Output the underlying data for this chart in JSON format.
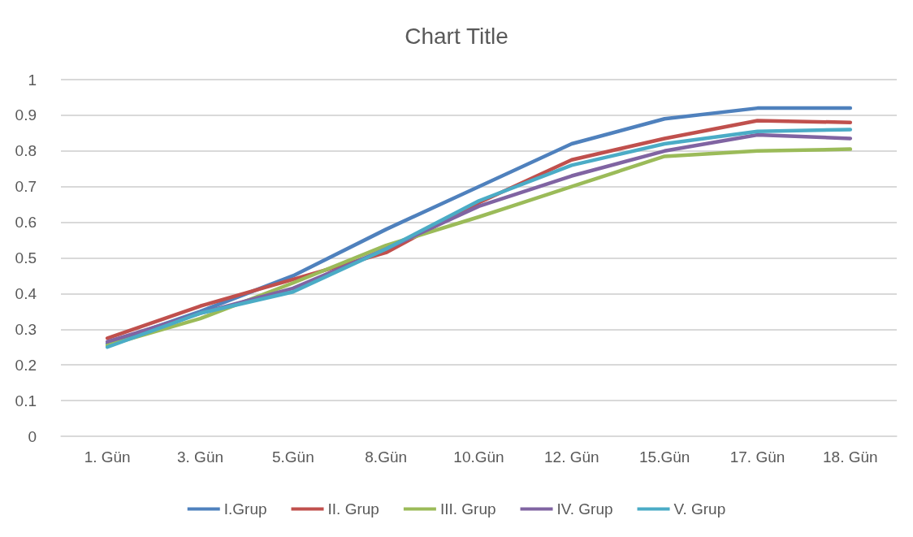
{
  "chart_data": {
    "type": "line",
    "title": "Chart Title",
    "categories": [
      "1. Gün",
      "3. Gün",
      "5.Gün",
      "8.Gün",
      "10.Gün",
      "12. Gün",
      "15.Gün",
      "17. Gün",
      "18. Gün"
    ],
    "series": [
      {
        "name": "I.Grup",
        "color": "#4f81bd",
        "values": [
          0.26,
          0.35,
          0.45,
          0.58,
          0.7,
          0.82,
          0.89,
          0.92,
          0.92
        ]
      },
      {
        "name": "II. Grup",
        "color": "#c0504d",
        "values": [
          0.275,
          0.365,
          0.44,
          0.515,
          0.655,
          0.775,
          0.835,
          0.885,
          0.88
        ]
      },
      {
        "name": "III. Grup",
        "color": "#9bbb59",
        "values": [
          0.255,
          0.33,
          0.43,
          0.535,
          0.615,
          0.7,
          0.785,
          0.8,
          0.805
        ]
      },
      {
        "name": "IV. Grup",
        "color": "#8064a2",
        "values": [
          0.265,
          0.345,
          0.415,
          0.525,
          0.645,
          0.73,
          0.8,
          0.845,
          0.835
        ]
      },
      {
        "name": "V. Grup",
        "color": "#4bacc6",
        "values": [
          0.25,
          0.345,
          0.405,
          0.525,
          0.66,
          0.76,
          0.82,
          0.855,
          0.86
        ]
      }
    ],
    "ylim": [
      0,
      1
    ],
    "yticks": [
      0,
      0.1,
      0.2,
      0.3,
      0.4,
      0.5,
      0.6,
      0.7,
      0.8,
      0.9,
      1
    ],
    "grid": "y",
    "legend": "bottom",
    "marker": "none",
    "line_style": "solid"
  }
}
